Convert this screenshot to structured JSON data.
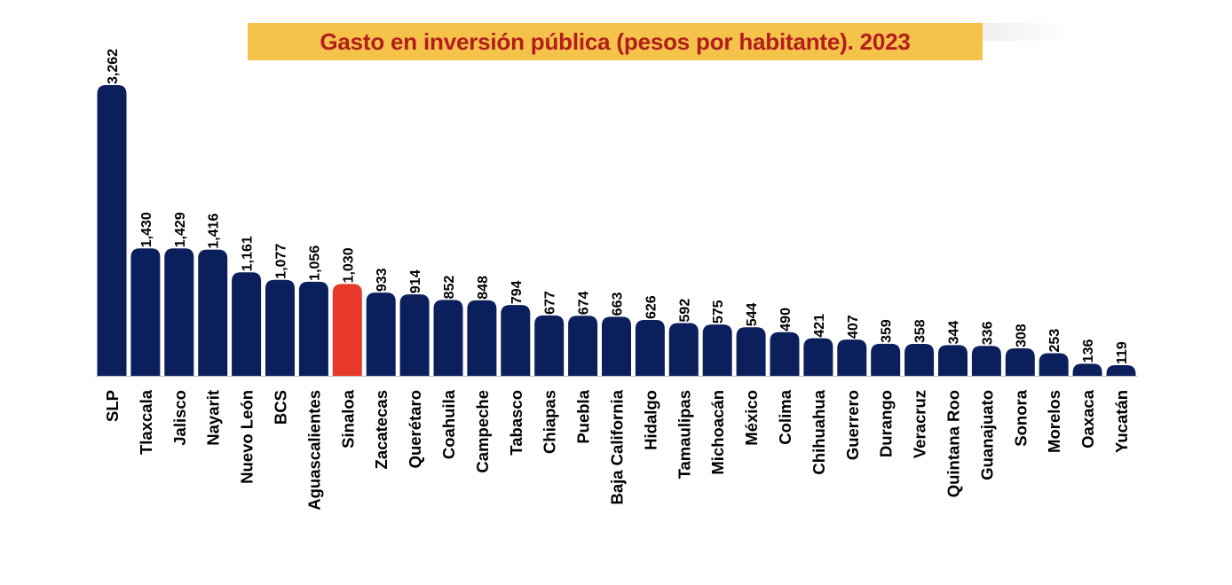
{
  "colors": {
    "bar_default": "#0b1f5c",
    "bar_highlight": "#e8382a",
    "title_background": "#f5c24a",
    "title_text": "#b31d1d",
    "axis_line": "#bdbdbd"
  },
  "chart_data": {
    "type": "bar",
    "title": "Gasto en inversión pública (pesos por habitante). 2023",
    "xlabel": "",
    "ylabel": "",
    "grid": false,
    "ylim": [
      0,
      3262
    ],
    "highlight_category": "Sinaloa",
    "categories": [
      "SLP",
      "Tlaxcala",
      "Jalisco",
      "Nayarit",
      "Nuevo León",
      "BCS",
      "Aguascalientes",
      "Sinaloa",
      "Zacatecas",
      "Querétaro",
      "Coahuila",
      "Campeche",
      "Tabasco",
      "Chiapas",
      "Puebla",
      "Baja California",
      "Hidalgo",
      "Tamaulipas",
      "Michoacán",
      "México",
      "Colima",
      "Chihuahua",
      "Guerrero",
      "Durango",
      "Veracruz",
      "Quintana Roo",
      "Guanajuato",
      "Sonora",
      "Morelos",
      "Oaxaca",
      "Yucatán"
    ],
    "values": [
      3262,
      1430,
      1429,
      1416,
      1161,
      1077,
      1056,
      1030,
      933,
      914,
      852,
      848,
      794,
      677,
      674,
      663,
      626,
      592,
      575,
      544,
      490,
      421,
      407,
      359,
      358,
      344,
      336,
      308,
      253,
      136,
      119
    ],
    "value_labels": [
      "3,262",
      "1,430",
      "1,429",
      "1,416",
      "1,161",
      "1,077",
      "1,056",
      "1,030",
      "933",
      "914",
      "852",
      "848",
      "794",
      "677",
      "674",
      "663",
      "626",
      "592",
      "575",
      "544",
      "490",
      "421",
      "407",
      "359",
      "358",
      "344",
      "336",
      "308",
      "253",
      "136",
      "119"
    ]
  }
}
